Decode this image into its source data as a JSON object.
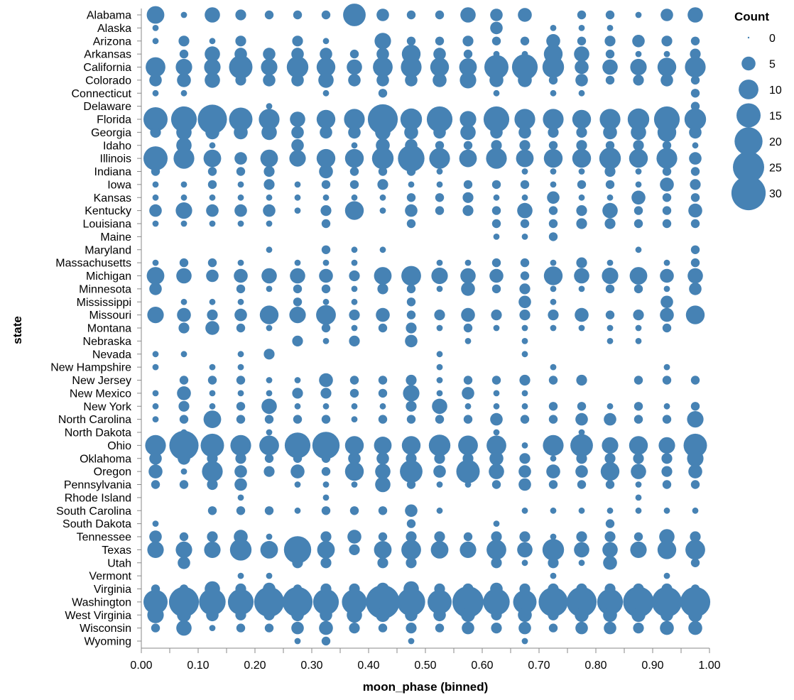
{
  "chart_data": {
    "type": "scatter",
    "mark": "circle",
    "color": "#4682b4",
    "xlabel": "moon_phase (binned)",
    "ylabel": "state",
    "x_ticks": [
      "0.00",
      "0.10",
      "0.20",
      "0.30",
      "0.40",
      "0.50",
      "0.60",
      "0.70",
      "0.80",
      "0.90",
      "1.00"
    ],
    "xlim": [
      0,
      1.0
    ],
    "x_bins": [
      0.025,
      0.075,
      0.125,
      0.175,
      0.225,
      0.275,
      0.325,
      0.375,
      0.425,
      0.475,
      0.525,
      0.575,
      0.625,
      0.675,
      0.725,
      0.775,
      0.825,
      0.875,
      0.925,
      0.975
    ],
    "legend": {
      "title": "Count",
      "placement": "top-right",
      "values": [
        0,
        5,
        10,
        15,
        20,
        25,
        30
      ],
      "labels": [
        "0",
        "5",
        "10",
        "15",
        "20",
        "25",
        "30"
      ]
    },
    "states": [
      "Alabama",
      "Alaska",
      "Arizona",
      "Arkansas",
      "California",
      "Colorado",
      "Connecticut",
      "Delaware",
      "Florida",
      "Georgia",
      "Idaho",
      "Illinois",
      "Indiana",
      "Iowa",
      "Kansas",
      "Kentucky",
      "Louisiana",
      "Maine",
      "Maryland",
      "Massachusetts",
      "Michigan",
      "Minnesota",
      "Mississippi",
      "Missouri",
      "Montana",
      "Nebraska",
      "Nevada",
      "New Hampshire",
      "New Jersey",
      "New Mexico",
      "New York",
      "North Carolina",
      "North Dakota",
      "Ohio",
      "Oklahoma",
      "Oregon",
      "Pennsylvania",
      "Rhode Island",
      "South Carolina",
      "South Dakota",
      "Tennessee",
      "Texas",
      "Utah",
      "Vermont",
      "Virginia",
      "Washington",
      "West Virginia",
      "Wisconsin",
      "Wyoming"
    ],
    "counts": [
      [
        8,
        1,
        6,
        3,
        2,
        2,
        2,
        13,
        4,
        2,
        2,
        6,
        4,
        5,
        0,
        2,
        2,
        1,
        4,
        6
      ],
      [
        1,
        0,
        0,
        0,
        0,
        0,
        0,
        0,
        0,
        0,
        0,
        0,
        4,
        0,
        1,
        1,
        1,
        0,
        0,
        0
      ],
      [
        1,
        3,
        1,
        3,
        0,
        3,
        1,
        0,
        7,
        2,
        2,
        3,
        2,
        2,
        5,
        2,
        3,
        4,
        3,
        2
      ],
      [
        0,
        2,
        6,
        4,
        4,
        4,
        4,
        2,
        4,
        9,
        4,
        2,
        1,
        1,
        9,
        6,
        2,
        1,
        1,
        3
      ],
      [
        10,
        7,
        7,
        14,
        7,
        12,
        9,
        6,
        10,
        11,
        9,
        8,
        15,
        17,
        12,
        5,
        6,
        7,
        9,
        11
      ],
      [
        4,
        5,
        6,
        3,
        4,
        4,
        6,
        4,
        4,
        4,
        5,
        7,
        5,
        5,
        2,
        4,
        2,
        3,
        4,
        2
      ],
      [
        1,
        1,
        0,
        0,
        0,
        0,
        1,
        0,
        2,
        0,
        0,
        0,
        1,
        0,
        1,
        1,
        0,
        0,
        0,
        2
      ],
      [
        0,
        0,
        0,
        0,
        1,
        0,
        0,
        0,
        0,
        0,
        0,
        0,
        0,
        0,
        0,
        0,
        0,
        0,
        0,
        2
      ],
      [
        15,
        17,
        22,
        14,
        11,
        6,
        9,
        11,
        23,
        12,
        17,
        7,
        17,
        11,
        11,
        9,
        11,
        12,
        17,
        12
      ],
      [
        3,
        6,
        5,
        5,
        6,
        4,
        4,
        4,
        6,
        5,
        4,
        6,
        4,
        4,
        3,
        3,
        5,
        6,
        9,
        4
      ],
      [
        0,
        6,
        1,
        0,
        0,
        4,
        0,
        1,
        5,
        4,
        2,
        2,
        3,
        3,
        2,
        3,
        2,
        3,
        2,
        1
      ],
      [
        15,
        11,
        8,
        4,
        8,
        7,
        9,
        9,
        12,
        18,
        11,
        8,
        11,
        8,
        9,
        9,
        12,
        9,
        11,
        4
      ],
      [
        2,
        0,
        2,
        2,
        3,
        0,
        5,
        2,
        2,
        2,
        1,
        0,
        0,
        1,
        1,
        1,
        3,
        1,
        2,
        2
      ],
      [
        1,
        1,
        2,
        1,
        3,
        1,
        2,
        2,
        3,
        1,
        1,
        2,
        2,
        2,
        1,
        2,
        2,
        1,
        5,
        3
      ],
      [
        1,
        1,
        1,
        1,
        1,
        1,
        1,
        1,
        1,
        2,
        2,
        3,
        1,
        1,
        4,
        1,
        1,
        5,
        2,
        2
      ],
      [
        4,
        7,
        4,
        4,
        4,
        1,
        3,
        9,
        1,
        4,
        2,
        3,
        2,
        6,
        2,
        3,
        6,
        2,
        2,
        5
      ],
      [
        1,
        1,
        1,
        1,
        1,
        0,
        2,
        0,
        0,
        2,
        0,
        0,
        2,
        2,
        2,
        3,
        3,
        2,
        2,
        2
      ],
      [
        0,
        0,
        0,
        0,
        0,
        0,
        0,
        0,
        0,
        0,
        0,
        0,
        1,
        1,
        2,
        0,
        0,
        0,
        0,
        0
      ],
      [
        0,
        0,
        0,
        0,
        1,
        0,
        2,
        1,
        1,
        0,
        0,
        0,
        0,
        0,
        0,
        0,
        0,
        1,
        0,
        2
      ],
      [
        1,
        2,
        2,
        1,
        0,
        1,
        1,
        1,
        0,
        0,
        1,
        1,
        2,
        2,
        1,
        3,
        1,
        0,
        1,
        2
      ],
      [
        8,
        6,
        4,
        5,
        6,
        6,
        5,
        3,
        8,
        10,
        7,
        6,
        5,
        2,
        9,
        6,
        7,
        8,
        5,
        6
      ],
      [
        4,
        0,
        0,
        2,
        1,
        2,
        2,
        1,
        3,
        2,
        1,
        5,
        2,
        3,
        1,
        1,
        2,
        2,
        1,
        4
      ],
      [
        0,
        1,
        1,
        1,
        0,
        2,
        1,
        1,
        0,
        2,
        0,
        0,
        0,
        4,
        1,
        0,
        0,
        0,
        4,
        0
      ],
      [
        7,
        5,
        3,
        4,
        9,
        7,
        10,
        3,
        5,
        2,
        3,
        5,
        3,
        3,
        3,
        5,
        2,
        3,
        5,
        9
      ],
      [
        0,
        3,
        5,
        2,
        1,
        0,
        2,
        1,
        2,
        3,
        1,
        2,
        1,
        1,
        1,
        1,
        1,
        1,
        2,
        0
      ],
      [
        0,
        0,
        0,
        0,
        0,
        3,
        1,
        3,
        0,
        4,
        0,
        1,
        0,
        1,
        0,
        0,
        1,
        1,
        0,
        0
      ],
      [
        1,
        1,
        0,
        1,
        3,
        0,
        0,
        0,
        0,
        0,
        1,
        0,
        0,
        1,
        0,
        0,
        0,
        0,
        0,
        0
      ],
      [
        1,
        0,
        1,
        1,
        0,
        0,
        0,
        0,
        0,
        0,
        1,
        0,
        0,
        0,
        1,
        0,
        0,
        0,
        1,
        0
      ],
      [
        0,
        2,
        2,
        2,
        1,
        1,
        5,
        2,
        2,
        3,
        1,
        2,
        2,
        3,
        2,
        3,
        0,
        2,
        2,
        2
      ],
      [
        1,
        5,
        1,
        1,
        1,
        3,
        3,
        2,
        2,
        7,
        1,
        4,
        1,
        1,
        0,
        0,
        0,
        0,
        0,
        0
      ],
      [
        1,
        3,
        1,
        2,
        6,
        1,
        1,
        1,
        1,
        3,
        6,
        1,
        1,
        1,
        2,
        2,
        1,
        2,
        1,
        2
      ],
      [
        1,
        2,
        8,
        2,
        2,
        2,
        2,
        1,
        2,
        2,
        2,
        2,
        4,
        2,
        2,
        4,
        4,
        2,
        2,
        7
      ],
      [
        0,
        1,
        0,
        0,
        1,
        0,
        0,
        0,
        0,
        0,
        0,
        0,
        1,
        0,
        0,
        1,
        0,
        0,
        0,
        0
      ],
      [
        11,
        22,
        14,
        11,
        10,
        17,
        19,
        9,
        8,
        9,
        12,
        10,
        10,
        1,
        11,
        13,
        7,
        9,
        7,
        14
      ],
      [
        4,
        4,
        3,
        3,
        2,
        2,
        2,
        4,
        4,
        3,
        3,
        3,
        5,
        3,
        1,
        3,
        3,
        3,
        3,
        7
      ],
      [
        5,
        1,
        11,
        4,
        3,
        5,
        2,
        9,
        6,
        13,
        4,
        14,
        6,
        4,
        5,
        4,
        9,
        6,
        3,
        5
      ],
      [
        2,
        2,
        3,
        4,
        0,
        1,
        1,
        1,
        6,
        2,
        1,
        1,
        2,
        4,
        2,
        2,
        2,
        1,
        2,
        2
      ],
      [
        0,
        0,
        0,
        1,
        0,
        0,
        1,
        0,
        0,
        0,
        0,
        0,
        0,
        0,
        0,
        0,
        0,
        1,
        0,
        0
      ],
      [
        0,
        0,
        2,
        2,
        2,
        1,
        2,
        2,
        2,
        4,
        1,
        0,
        0,
        1,
        1,
        1,
        1,
        1,
        1,
        1
      ],
      [
        1,
        0,
        0,
        0,
        0,
        0,
        0,
        0,
        0,
        2,
        0,
        0,
        1,
        0,
        0,
        0,
        2,
        0,
        0,
        0
      ],
      [
        4,
        2,
        3,
        5,
        1,
        0,
        3,
        5,
        2,
        3,
        3,
        2,
        3,
        3,
        1,
        3,
        3,
        2,
        6,
        3
      ],
      [
        7,
        7,
        7,
        12,
        8,
        19,
        8,
        3,
        8,
        10,
        8,
        7,
        10,
        6,
        12,
        6,
        6,
        7,
        9,
        10
      ],
      [
        0,
        4,
        0,
        0,
        0,
        3,
        3,
        0,
        3,
        3,
        0,
        0,
        3,
        1,
        3,
        1,
        5,
        0,
        0,
        2
      ],
      [
        0,
        0,
        0,
        1,
        1,
        0,
        0,
        0,
        0,
        0,
        0,
        0,
        0,
        0,
        1,
        0,
        0,
        0,
        1,
        0
      ],
      [
        2,
        2,
        6,
        3,
        4,
        2,
        3,
        3,
        4,
        6,
        3,
        3,
        4,
        3,
        3,
        3,
        3,
        3,
        3,
        2
      ],
      [
        15,
        23,
        18,
        17,
        23,
        23,
        17,
        16,
        29,
        20,
        15,
        25,
        18,
        14,
        22,
        23,
        17,
        24,
        23,
        23
      ],
      [
        7,
        5,
        4,
        3,
        3,
        4,
        4,
        6,
        5,
        4,
        4,
        5,
        3,
        5,
        3,
        5,
        5,
        5,
        4,
        5
      ],
      [
        2,
        6,
        1,
        2,
        2,
        4,
        5,
        3,
        2,
        3,
        2,
        4,
        3,
        4,
        2,
        4,
        4,
        3,
        5,
        5
      ],
      [
        0,
        0,
        0,
        0,
        0,
        1,
        2,
        0,
        0,
        1,
        0,
        0,
        0,
        1,
        0,
        0,
        0,
        0,
        0,
        0
      ]
    ]
  }
}
